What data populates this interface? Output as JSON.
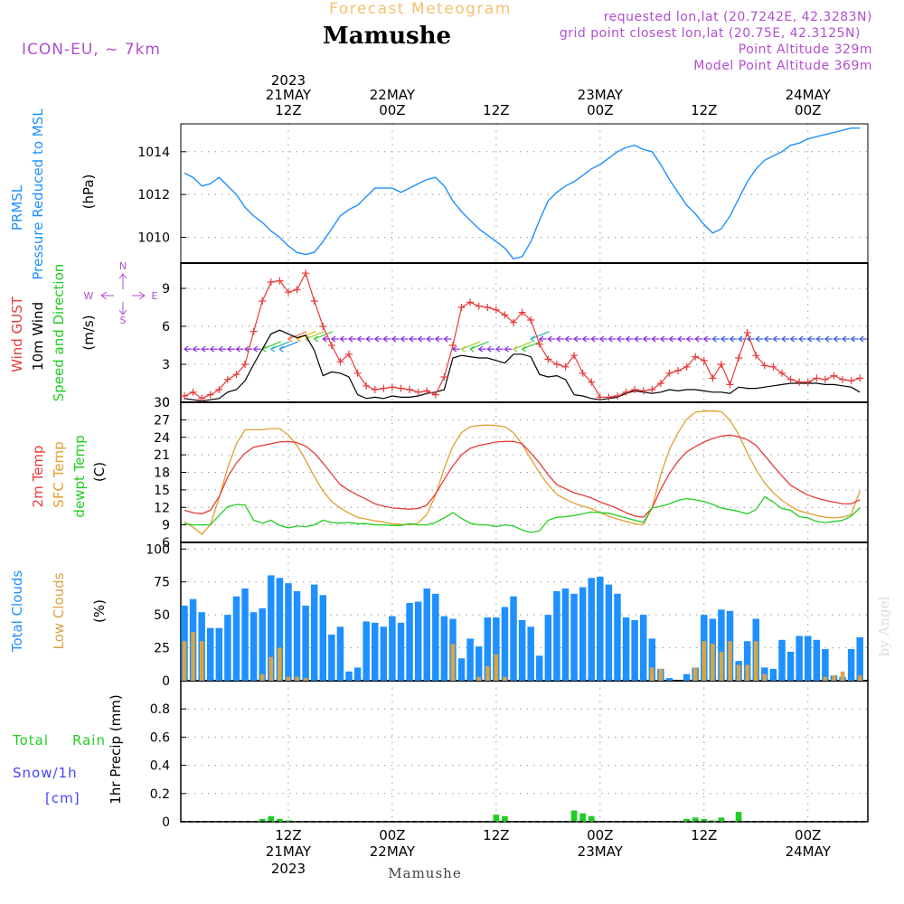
{
  "header": {
    "forecast_label": "Forecast Meteogram",
    "location": "Mamushe",
    "model": "ICON-EU, ~ 7km",
    "requested": "requested lon,lat (20.7242E, 42.3283N)",
    "grid_point": "grid point closest lon,lat (20.75E, 42.3125N)",
    "point_alt": "Point Altitude 329m",
    "model_alt": "Model Point Altitude 369m",
    "footer_location": "Mamushe",
    "credit": "by Angel"
  },
  "time_axis": {
    "top": [
      {
        "h": 12,
        "l1": "2023",
        "l2": "21MAY",
        "l3": "12Z"
      },
      {
        "h": 24,
        "l2": "22MAY",
        "l3": "00Z"
      },
      {
        "h": 36,
        "l3": "12Z"
      },
      {
        "h": 48,
        "l2": "23MAY",
        "l3": "00Z"
      },
      {
        "h": 60,
        "l3": "12Z"
      },
      {
        "h": 72,
        "l2": "24MAY",
        "l3": "00Z"
      }
    ],
    "bottom": [
      {
        "h": 12,
        "l1": "12Z",
        "l2": "21MAY",
        "l3": "2023"
      },
      {
        "h": 24,
        "l1": "00Z",
        "l2": "22MAY"
      },
      {
        "h": 36,
        "l1": "12Z"
      },
      {
        "h": 48,
        "l1": "00Z",
        "l2": "23MAY"
      },
      {
        "h": 60,
        "l1": "12Z"
      },
      {
        "h": 72,
        "l1": "00Z",
        "l2": "24MAY"
      }
    ]
  },
  "labels": {
    "prmsl": "PRMSL",
    "pressure": "Pressure Reduced to MSL",
    "hpa": "(hPa)",
    "gust": "Wind GUST",
    "wind10": "10m Wind",
    "speeddir": "Speed and Direction",
    "ms": "(m/s)",
    "compass_w": "W",
    "compass_e": "E",
    "compass_n": "N",
    "compass_s": "S",
    "t2m": "2m Temp",
    "sfc": "SFC Temp",
    "dew": "dewpt Temp",
    "degc": "(C)",
    "total_clouds": "Total Clouds",
    "low_clouds": "Low Clouds",
    "pct": "(%)",
    "total": "Total",
    "rain": "Rain",
    "snow": "Snow/1h",
    "cm": "[cm]",
    "precip": "1hr Precip (mm)"
  },
  "colors": {
    "pressure": "#1e90ff",
    "gust": "#e83a3a",
    "wind": "#000000",
    "t2m": "#e83a3a",
    "sfc": "#e0a030",
    "dew": "#22cc22",
    "total_clouds": "#1e90ff",
    "low_clouds": "#d9a441",
    "rain": "#22cc22",
    "snow": "#4444ff",
    "header_purple": "#b04fd0",
    "header_orange": "#f5c070"
  },
  "chart_data": [
    {
      "type": "line",
      "title": "PRMSL Pressure Reduced to MSL",
      "ylabel": "(hPa)",
      "ylim": [
        1008.8,
        1015.3
      ],
      "yticks": [
        1010,
        1012,
        1014
      ],
      "x_hours": [
        0,
        1,
        2,
        3,
        4,
        5,
        6,
        7,
        8,
        9,
        10,
        11,
        12,
        13,
        14,
        15,
        16,
        17,
        18,
        19,
        20,
        21,
        22,
        23,
        24,
        25,
        26,
        27,
        28,
        29,
        30,
        31,
        32,
        33,
        34,
        35,
        36,
        37,
        38,
        39,
        40,
        41,
        42,
        43,
        44,
        45,
        46,
        47,
        48,
        49,
        50,
        51,
        52,
        53,
        54,
        55,
        56,
        57,
        58,
        59,
        60,
        61,
        62,
        63,
        64,
        65,
        66,
        67,
        68,
        69,
        70,
        71,
        72,
        73,
        74,
        75,
        76,
        77,
        78
      ],
      "series": [
        {
          "name": "PRMSL",
          "values": [
            1013.0,
            1012.8,
            1012.4,
            1012.5,
            1012.8,
            1012.4,
            1012.0,
            1011.4,
            1011.0,
            1010.7,
            1010.3,
            1010.0,
            1009.6,
            1009.3,
            1009.2,
            1009.3,
            1009.8,
            1010.4,
            1011.0,
            1011.3,
            1011.5,
            1011.9,
            1012.3,
            1012.3,
            1012.3,
            1012.1,
            1012.3,
            1012.5,
            1012.7,
            1012.8,
            1012.4,
            1011.7,
            1011.2,
            1010.8,
            1010.4,
            1010.1,
            1009.8,
            1009.5,
            1009.0,
            1009.1,
            1009.8,
            1010.8,
            1011.7,
            1012.1,
            1012.4,
            1012.6,
            1012.9,
            1013.2,
            1013.4,
            1013.7,
            1014.0,
            1014.2,
            1014.3,
            1014.1,
            1014.0,
            1013.4,
            1012.7,
            1012.1,
            1011.5,
            1011.1,
            1010.6,
            1010.2,
            1010.4,
            1011.0,
            1011.8,
            1012.6,
            1013.2,
            1013.6,
            1013.8,
            1014.0,
            1014.3,
            1014.4,
            1014.6,
            1014.7,
            1014.8,
            1014.9,
            1015.0,
            1015.1,
            1015.1
          ]
        }
      ]
    },
    {
      "type": "line",
      "title": "Wind GUST / 10m Wind Speed and Direction",
      "ylabel": "(m/s)",
      "ylim": [
        0,
        11
      ],
      "yticks": [
        0,
        3,
        6,
        9
      ],
      "x_hours": [
        0,
        1,
        2,
        3,
        4,
        5,
        6,
        7,
        8,
        9,
        10,
        11,
        12,
        13,
        14,
        15,
        16,
        17,
        18,
        19,
        20,
        21,
        22,
        23,
        24,
        25,
        26,
        27,
        28,
        29,
        30,
        31,
        32,
        33,
        34,
        35,
        36,
        37,
        38,
        39,
        40,
        41,
        42,
        43,
        44,
        45,
        46,
        47,
        48,
        49,
        50,
        51,
        52,
        53,
        54,
        55,
        56,
        57,
        58,
        59,
        60,
        61,
        62,
        63,
        64,
        65,
        66,
        67,
        68,
        69,
        70,
        71,
        72,
        73,
        74,
        75,
        76,
        77,
        78
      ],
      "series": [
        {
          "name": "Wind GUST",
          "values": [
            0.5,
            0.8,
            0.3,
            0.6,
            1.0,
            1.8,
            2.2,
            3.0,
            5.6,
            8.0,
            9.5,
            9.6,
            8.7,
            8.9,
            10.2,
            8.0,
            6.0,
            4.5,
            3.2,
            3.8,
            2.3,
            1.3,
            1.0,
            1.1,
            1.2,
            1.1,
            1.0,
            0.8,
            0.9,
            0.6,
            2.0,
            4.5,
            7.5,
            7.9,
            7.6,
            7.5,
            7.3,
            6.9,
            6.3,
            7.1,
            6.5,
            4.6,
            3.4,
            3.0,
            2.8,
            3.7,
            2.3,
            1.6,
            0.4,
            0.4,
            0.5,
            0.8,
            1.0,
            0.9,
            1.0,
            1.5,
            2.3,
            2.5,
            2.8,
            3.6,
            3.3,
            1.9,
            3.0,
            1.4,
            3.5,
            5.5,
            3.7,
            2.9,
            2.8,
            2.3,
            1.8,
            1.6,
            1.6,
            1.9,
            1.8,
            2.1,
            1.8,
            1.7,
            1.9
          ]
        },
        {
          "name": "10m Wind",
          "values": [
            0.3,
            0.2,
            0.1,
            0.2,
            0.3,
            0.8,
            1.0,
            1.7,
            3.0,
            4.2,
            5.4,
            5.7,
            5.4,
            5.1,
            5.3,
            4.1,
            2.1,
            2.4,
            2.3,
            2.0,
            0.6,
            0.3,
            0.4,
            0.3,
            0.5,
            0.4,
            0.4,
            0.5,
            0.7,
            0.8,
            1.0,
            3.5,
            3.7,
            3.6,
            3.5,
            3.5,
            3.3,
            3.1,
            3.8,
            3.8,
            3.6,
            2.2,
            2.0,
            2.1,
            1.8,
            0.6,
            0.5,
            0.3,
            0.2,
            0.3,
            0.4,
            0.7,
            0.9,
            0.8,
            0.7,
            0.8,
            1.0,
            0.9,
            1.0,
            1.0,
            0.9,
            0.8,
            0.8,
            0.7,
            1.2,
            1.1,
            1.1,
            1.2,
            1.3,
            1.4,
            1.5,
            1.5,
            1.5,
            1.5,
            1.4,
            1.4,
            1.3,
            1.2,
            0.8
          ]
        }
      ]
    },
    {
      "type": "line",
      "title": "2m Temp / SFC Temp / dewpt Temp",
      "ylabel": "(C)",
      "ylim": [
        6,
        30
      ],
      "yticks": [
        6,
        9,
        12,
        15,
        18,
        21,
        24,
        27,
        30
      ],
      "x_hours": [
        0,
        1,
        2,
        3,
        4,
        5,
        6,
        7,
        8,
        9,
        10,
        11,
        12,
        13,
        14,
        15,
        16,
        17,
        18,
        19,
        20,
        21,
        22,
        23,
        24,
        25,
        26,
        27,
        28,
        29,
        30,
        31,
        32,
        33,
        34,
        35,
        36,
        37,
        38,
        39,
        40,
        41,
        42,
        43,
        44,
        45,
        46,
        47,
        48,
        49,
        50,
        51,
        52,
        53,
        54,
        55,
        56,
        57,
        58,
        59,
        60,
        61,
        62,
        63,
        64,
        65,
        66,
        67,
        68,
        69,
        70,
        71,
        72,
        73,
        74,
        75,
        76,
        77,
        78
      ],
      "series": [
        {
          "name": "2m Temp",
          "values": [
            11.5,
            11.1,
            10.9,
            11.5,
            13.8,
            17.2,
            19.6,
            21.3,
            22.3,
            22.6,
            22.9,
            23.2,
            23.3,
            23.1,
            22.5,
            21.3,
            19.6,
            17.7,
            15.9,
            14.9,
            14.1,
            13.4,
            12.6,
            12.2,
            11.9,
            11.8,
            11.7,
            11.8,
            12.4,
            14.3,
            16.8,
            19.1,
            21.0,
            22.1,
            22.6,
            22.9,
            23.2,
            23.3,
            23.3,
            22.9,
            21.3,
            19.6,
            17.6,
            15.9,
            15.2,
            14.5,
            14.1,
            13.6,
            12.9,
            12.4,
            11.8,
            11.1,
            10.5,
            10.3,
            11.9,
            15.1,
            17.8,
            19.9,
            21.5,
            22.4,
            23.2,
            23.8,
            24.2,
            24.4,
            24.1,
            23.6,
            22.6,
            20.9,
            19.1,
            17.4,
            15.8,
            14.9,
            14.1,
            13.6,
            13.2,
            12.9,
            12.6,
            12.6,
            13.3
          ]
        },
        {
          "name": "SFC Temp",
          "values": [
            9.5,
            8.6,
            7.4,
            9.0,
            13.6,
            18.8,
            22.9,
            25.3,
            25.3,
            25.3,
            25.5,
            25.5,
            24.4,
            22.6,
            20.1,
            17.3,
            14.8,
            13.0,
            11.9,
            11.0,
            10.3,
            10.0,
            9.7,
            9.5,
            9.2,
            9.1,
            9.0,
            9.3,
            10.8,
            14.1,
            18.7,
            22.5,
            24.8,
            25.8,
            26.0,
            26.1,
            26.0,
            25.8,
            24.8,
            22.8,
            20.3,
            17.9,
            15.9,
            14.2,
            13.4,
            12.7,
            12.2,
            11.8,
            11.1,
            10.5,
            10.0,
            9.6,
            9.2,
            9.0,
            11.9,
            17.6,
            21.9,
            24.8,
            27.1,
            28.3,
            28.5,
            28.5,
            28.4,
            26.9,
            24.5,
            21.3,
            18.5,
            16.2,
            14.5,
            13.2,
            12.2,
            11.4,
            11.0,
            10.6,
            10.3,
            10.2,
            10.3,
            10.8,
            14.8
          ]
        },
        {
          "name": "dewpt Temp",
          "values": [
            9.2,
            9.0,
            9.0,
            9.0,
            10.6,
            12.1,
            12.5,
            12.4,
            9.8,
            9.3,
            9.8,
            8.9,
            8.5,
            8.8,
            8.7,
            9.0,
            9.8,
            9.4,
            9.3,
            9.4,
            9.2,
            9.2,
            9.0,
            9.0,
            8.9,
            8.9,
            9.2,
            9.0,
            9.0,
            9.4,
            10.2,
            11.1,
            10.1,
            9.3,
            9.0,
            9.0,
            8.7,
            9.0,
            8.8,
            8.1,
            7.7,
            8.0,
            9.8,
            10.3,
            10.4,
            10.6,
            10.9,
            11.2,
            11.1,
            11.0,
            10.6,
            10.2,
            9.8,
            9.4,
            11.9,
            12.2,
            12.6,
            13.2,
            13.5,
            13.3,
            13.0,
            12.5,
            11.9,
            11.6,
            11.3,
            10.9,
            11.6,
            13.8,
            12.9,
            11.8,
            11.5,
            10.4,
            10.2,
            9.6,
            9.4,
            9.6,
            9.8,
            10.5,
            11.9
          ]
        }
      ]
    },
    {
      "type": "bar",
      "title": "Total Clouds / Low Clouds",
      "ylabel": "(%)",
      "ylim": [
        0,
        105
      ],
      "yticks": [
        0,
        25,
        50,
        75,
        100
      ],
      "x_hours": [
        0,
        1,
        2,
        3,
        4,
        5,
        6,
        7,
        8,
        9,
        10,
        11,
        12,
        13,
        14,
        15,
        16,
        17,
        18,
        19,
        20,
        21,
        22,
        23,
        24,
        25,
        26,
        27,
        28,
        29,
        30,
        31,
        32,
        33,
        34,
        35,
        36,
        37,
        38,
        39,
        40,
        41,
        42,
        43,
        44,
        45,
        46,
        47,
        48,
        49,
        50,
        51,
        52,
        53,
        54,
        55,
        56,
        57,
        58,
        59,
        60,
        61,
        62,
        63,
        64,
        65,
        66,
        67,
        68,
        69,
        70,
        71,
        72,
        73,
        74,
        75,
        76,
        77,
        78
      ],
      "series": [
        {
          "name": "Total Clouds",
          "values": [
            57,
            62,
            52,
            40,
            40,
            50,
            64,
            70,
            52,
            55,
            80,
            78,
            74,
            68,
            57,
            73,
            65,
            35,
            41,
            7,
            10,
            45,
            44,
            41,
            49,
            44,
            59,
            60,
            70,
            66,
            49,
            47,
            17,
            32,
            26,
            48,
            48,
            56,
            64,
            46,
            41,
            19,
            50,
            68,
            70,
            66,
            71,
            78,
            79,
            73,
            66,
            48,
            46,
            50,
            32,
            9,
            2,
            0,
            5,
            10,
            50,
            47,
            54,
            53,
            15,
            30,
            47,
            10,
            9,
            31,
            22,
            34,
            34,
            31,
            24,
            4,
            3,
            24,
            33
          ]
        },
        {
          "name": "Low Clouds",
          "values": [
            30,
            37,
            30,
            0,
            0,
            0,
            0,
            0,
            0,
            5,
            18,
            25,
            3,
            3,
            2,
            0,
            0,
            0,
            0,
            0,
            0,
            0,
            0,
            0,
            0,
            0,
            0,
            0,
            0,
            0,
            0,
            28,
            0,
            0,
            3,
            11,
            20,
            3,
            0,
            0,
            0,
            0,
            0,
            0,
            0,
            0,
            0,
            0,
            0,
            0,
            0,
            0,
            0,
            0,
            10,
            9,
            0,
            0,
            0,
            10,
            30,
            28,
            22,
            30,
            12,
            12,
            30,
            5,
            0,
            0,
            0,
            0,
            0,
            0,
            3,
            4,
            7,
            0,
            4
          ]
        }
      ]
    },
    {
      "type": "bar",
      "title": "Total Rain / Snow/1h 1hr Precip (mm)",
      "ylabel": "1hr Precip (mm)",
      "ylim": [
        0,
        1.0
      ],
      "yticks": [
        0,
        0.2,
        0.4,
        0.6,
        0.8
      ],
      "x_hours": [
        9,
        10,
        11,
        12,
        36,
        37,
        45,
        46,
        47,
        58,
        59,
        60,
        61,
        62,
        64
      ],
      "series": [
        {
          "name": "Total Rain",
          "values": [
            0.02,
            0.04,
            0.02,
            0.01,
            0.05,
            0.04,
            0.08,
            0.06,
            0.04,
            0.02,
            0.03,
            0.02,
            0.01,
            0.03,
            0.07
          ]
        }
      ]
    }
  ]
}
